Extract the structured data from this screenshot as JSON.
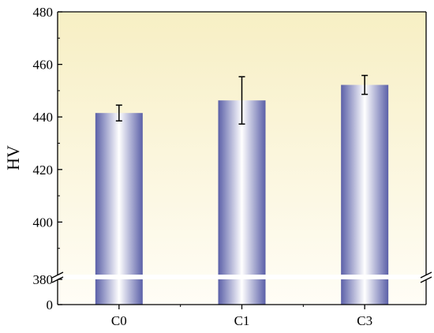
{
  "chart_data": {
    "type": "bar",
    "title": "",
    "xlabel": "",
    "ylabel": "HV",
    "categories": [
      "C0",
      "C1",
      "C3"
    ],
    "values": [
      441.5,
      446.3,
      452.2
    ],
    "errors": [
      3.0,
      9.0,
      3.6
    ],
    "ylim": [
      0,
      480
    ],
    "axis_break": {
      "lower_range": [
        0,
        380
      ],
      "upper_range": [
        380,
        480
      ]
    },
    "y_ticks": [
      0,
      380,
      400,
      420,
      440,
      460,
      480
    ],
    "tick_labels": [
      "0",
      "380",
      "400",
      "420",
      "440",
      "460",
      "480"
    ],
    "grid": false,
    "legend": "none",
    "colors": {
      "bar_edge": "#5b60a8",
      "bar_center": "#ffffff",
      "background_top": "#f7efc4",
      "background_bottom": "#fffdf6",
      "axis": "#000000"
    }
  }
}
